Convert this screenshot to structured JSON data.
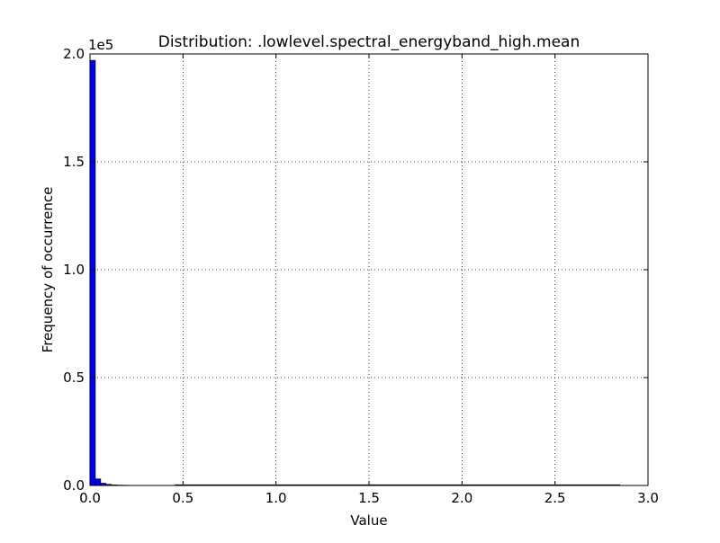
{
  "chart_data": {
    "type": "bar",
    "title": "Distribution: .lowlevel.spectral_energyband_high.mean",
    "xlabel": "Value",
    "ylabel": "Frequency of occurrence",
    "y_multiplier_label": "1e5",
    "xlim": [
      0.0,
      3.0
    ],
    "ylim": [
      0,
      200000
    ],
    "xticks": [
      "0.0",
      "0.5",
      "1.0",
      "1.5",
      "2.0",
      "2.5",
      "3.0"
    ],
    "xtick_values": [
      0.0,
      0.5,
      1.0,
      1.5,
      2.0,
      2.5,
      3.0
    ],
    "yticks": [
      "0.0",
      "0.5",
      "1.0",
      "1.5",
      "2.0"
    ],
    "ytick_values": [
      0,
      50000,
      100000,
      150000,
      200000
    ],
    "grid": true,
    "grid_style": "dotted",
    "bar_color": "#0000ff",
    "bin_width": 0.0285,
    "bins": [
      {
        "x": 0.0,
        "value": 197000
      },
      {
        "x": 0.0285,
        "value": 3000
      },
      {
        "x": 0.057,
        "value": 1000
      },
      {
        "x": 0.0855,
        "value": 500
      },
      {
        "x": 0.114,
        "value": 250
      },
      {
        "x": 0.1425,
        "value": 150
      },
      {
        "x": 0.171,
        "value": 100
      },
      {
        "x": 0.1995,
        "value": 60
      },
      {
        "x": 0.228,
        "value": 40
      },
      {
        "x": 0.2565,
        "value": 30
      },
      {
        "x": 0.285,
        "value": 20
      },
      {
        "x": 0.3135,
        "value": 15
      },
      {
        "x": 0.342,
        "value": 10
      },
      {
        "x": 0.3705,
        "value": 8
      },
      {
        "x": 0.399,
        "value": 6
      },
      {
        "x": 0.4275,
        "value": 5
      }
    ],
    "tail_end_value": 2.85
  }
}
